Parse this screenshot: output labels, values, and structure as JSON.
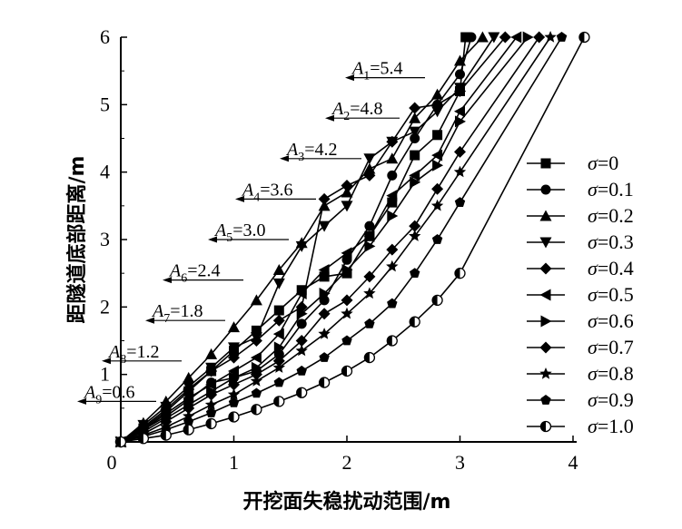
{
  "chart_data": {
    "type": "line",
    "title": "",
    "xlabel": "开挖面失稳扰动范围/m",
    "ylabel": "距隧道底部距离/m",
    "xlim": [
      0,
      4
    ],
    "ylim": [
      0,
      6
    ],
    "xticks": [
      "0",
      "1",
      "2",
      "3",
      "4"
    ],
    "yticks": [
      "1",
      "2",
      "3",
      "4",
      "5",
      "6"
    ],
    "grid": false,
    "legend_position": "right",
    "series": [
      {
        "name": "σ=0",
        "marker": "square",
        "points": [
          [
            0,
            0
          ],
          [
            0.2,
            0.2
          ],
          [
            0.4,
            0.45
          ],
          [
            0.6,
            0.75
          ],
          [
            0.8,
            1.05
          ],
          [
            1.0,
            1.35
          ],
          [
            1.2,
            1.65
          ],
          [
            1.4,
            1.95
          ],
          [
            1.6,
            2.25
          ],
          [
            1.8,
            2.45
          ],
          [
            2.0,
            2.5
          ],
          [
            2.2,
            3.05
          ],
          [
            2.4,
            3.55
          ],
          [
            2.6,
            4.25
          ],
          [
            2.8,
            4.55
          ],
          [
            3.0,
            5.2
          ],
          [
            3.05,
            6.0
          ]
        ]
      },
      {
        "name": "σ=0.1",
        "marker": "circle",
        "points": [
          [
            0,
            0
          ],
          [
            0.2,
            0.18
          ],
          [
            0.4,
            0.38
          ],
          [
            0.6,
            0.62
          ],
          [
            0.8,
            0.88
          ],
          [
            1.0,
            0.95
          ],
          [
            1.2,
            1.05
          ],
          [
            1.4,
            1.3
          ],
          [
            1.6,
            1.75
          ],
          [
            1.8,
            2.1
          ],
          [
            2.0,
            2.7
          ],
          [
            2.2,
            3.2
          ],
          [
            2.4,
            3.95
          ],
          [
            2.6,
            4.5
          ],
          [
            2.8,
            5.0
          ],
          [
            3.0,
            5.45
          ],
          [
            3.1,
            6.0
          ]
        ]
      },
      {
        "name": "σ=0.2",
        "marker": "triangle-up",
        "points": [
          [
            0,
            0
          ],
          [
            0.2,
            0.28
          ],
          [
            0.4,
            0.6
          ],
          [
            0.6,
            0.95
          ],
          [
            0.8,
            1.3
          ],
          [
            1.0,
            1.7
          ],
          [
            1.2,
            2.1
          ],
          [
            1.4,
            2.55
          ],
          [
            1.6,
            2.95
          ],
          [
            1.8,
            3.5
          ],
          [
            2.0,
            3.7
          ],
          [
            2.2,
            4.05
          ],
          [
            2.4,
            4.2
          ],
          [
            2.6,
            4.8
          ],
          [
            2.8,
            5.15
          ],
          [
            3.0,
            5.65
          ],
          [
            3.2,
            6.0
          ]
        ]
      },
      {
        "name": "σ=0.3",
        "marker": "triangle-down",
        "points": [
          [
            0,
            0
          ],
          [
            0.2,
            0.25
          ],
          [
            0.4,
            0.52
          ],
          [
            0.6,
            0.82
          ],
          [
            0.8,
            1.1
          ],
          [
            1.0,
            1.4
          ],
          [
            1.2,
            1.55
          ],
          [
            1.4,
            2.35
          ],
          [
            1.6,
            2.9
          ],
          [
            1.8,
            3.2
          ],
          [
            2.0,
            3.5
          ],
          [
            2.2,
            4.2
          ],
          [
            2.4,
            4.45
          ],
          [
            2.6,
            4.6
          ],
          [
            2.8,
            4.9
          ],
          [
            3.0,
            5.25
          ],
          [
            3.3,
            6.0
          ]
        ]
      },
      {
        "name": "σ=0.4",
        "marker": "diamond",
        "points": [
          [
            0,
            0
          ],
          [
            0.2,
            0.22
          ],
          [
            0.4,
            0.48
          ],
          [
            0.6,
            0.78
          ],
          [
            0.8,
            1.05
          ],
          [
            1.0,
            1.25
          ],
          [
            1.2,
            1.5
          ],
          [
            1.4,
            1.8
          ],
          [
            1.6,
            2.0
          ],
          [
            1.8,
            3.6
          ],
          [
            2.0,
            3.8
          ],
          [
            2.2,
            3.95
          ],
          [
            2.4,
            4.45
          ],
          [
            2.6,
            4.95
          ],
          [
            2.8,
            5.0
          ],
          [
            3.0,
            5.2
          ],
          [
            3.4,
            6.0
          ]
        ]
      },
      {
        "name": "σ=0.5",
        "marker": "triangle-left",
        "points": [
          [
            0,
            0
          ],
          [
            0.2,
            0.18
          ],
          [
            0.4,
            0.42
          ],
          [
            0.6,
            0.65
          ],
          [
            0.8,
            0.85
          ],
          [
            1.0,
            1.05
          ],
          [
            1.2,
            1.25
          ],
          [
            1.4,
            1.6
          ],
          [
            1.6,
            2.2
          ],
          [
            1.8,
            2.55
          ],
          [
            2.0,
            2.8
          ],
          [
            2.2,
            3.05
          ],
          [
            2.4,
            3.65
          ],
          [
            2.6,
            3.95
          ],
          [
            2.8,
            4.25
          ],
          [
            3.0,
            4.9
          ],
          [
            3.5,
            6.0
          ]
        ]
      },
      {
        "name": "σ=0.6",
        "marker": "triangle-right",
        "points": [
          [
            0,
            0
          ],
          [
            0.2,
            0.15
          ],
          [
            0.4,
            0.35
          ],
          [
            0.6,
            0.55
          ],
          [
            0.8,
            0.75
          ],
          [
            1.0,
            0.95
          ],
          [
            1.2,
            1.1
          ],
          [
            1.4,
            1.4
          ],
          [
            1.6,
            1.9
          ],
          [
            1.8,
            2.2
          ],
          [
            2.0,
            2.55
          ],
          [
            2.2,
            2.9
          ],
          [
            2.4,
            3.35
          ],
          [
            2.6,
            3.85
          ],
          [
            2.8,
            4.1
          ],
          [
            3.0,
            4.75
          ],
          [
            3.6,
            6.0
          ]
        ]
      },
      {
        "name": "σ=0.7",
        "marker": "diamond",
        "points": [
          [
            0,
            0
          ],
          [
            0.2,
            0.12
          ],
          [
            0.4,
            0.3
          ],
          [
            0.6,
            0.5
          ],
          [
            0.8,
            0.7
          ],
          [
            1.0,
            0.85
          ],
          [
            1.2,
            1.0
          ],
          [
            1.4,
            1.2
          ],
          [
            1.6,
            1.5
          ],
          [
            1.8,
            1.9
          ],
          [
            2.0,
            2.1
          ],
          [
            2.2,
            2.45
          ],
          [
            2.4,
            2.85
          ],
          [
            2.6,
            3.2
          ],
          [
            2.8,
            3.75
          ],
          [
            3.0,
            4.3
          ],
          [
            3.7,
            6.0
          ]
        ]
      },
      {
        "name": "σ=0.8",
        "marker": "star",
        "points": [
          [
            0,
            0
          ],
          [
            0.2,
            0.1
          ],
          [
            0.4,
            0.22
          ],
          [
            0.6,
            0.38
          ],
          [
            0.8,
            0.55
          ],
          [
            1.0,
            0.7
          ],
          [
            1.2,
            0.9
          ],
          [
            1.4,
            1.1
          ],
          [
            1.6,
            1.35
          ],
          [
            1.8,
            1.6
          ],
          [
            2.0,
            1.9
          ],
          [
            2.2,
            2.2
          ],
          [
            2.4,
            2.6
          ],
          [
            2.6,
            3.05
          ],
          [
            2.8,
            3.5
          ],
          [
            3.0,
            4.0
          ],
          [
            3.8,
            6.0
          ]
        ]
      },
      {
        "name": "σ=0.9",
        "marker": "pentagon",
        "points": [
          [
            0,
            0
          ],
          [
            0.2,
            0.08
          ],
          [
            0.4,
            0.18
          ],
          [
            0.6,
            0.3
          ],
          [
            0.8,
            0.43
          ],
          [
            1.0,
            0.58
          ],
          [
            1.2,
            0.72
          ],
          [
            1.4,
            0.88
          ],
          [
            1.6,
            1.05
          ],
          [
            1.8,
            1.25
          ],
          [
            2.0,
            1.5
          ],
          [
            2.2,
            1.75
          ],
          [
            2.4,
            2.05
          ],
          [
            2.6,
            2.5
          ],
          [
            2.8,
            3.0
          ],
          [
            3.0,
            3.55
          ],
          [
            3.9,
            6.0
          ]
        ]
      },
      {
        "name": "σ=1.0",
        "marker": "half-circle",
        "points": [
          [
            0,
            0
          ],
          [
            0.2,
            0.05
          ],
          [
            0.4,
            0.1
          ],
          [
            0.6,
            0.18
          ],
          [
            0.8,
            0.27
          ],
          [
            1.0,
            0.37
          ],
          [
            1.2,
            0.48
          ],
          [
            1.4,
            0.6
          ],
          [
            1.6,
            0.73
          ],
          [
            1.8,
            0.88
          ],
          [
            2.0,
            1.05
          ],
          [
            2.2,
            1.25
          ],
          [
            2.4,
            1.5
          ],
          [
            2.6,
            1.78
          ],
          [
            2.8,
            2.1
          ],
          [
            3.0,
            2.5
          ],
          [
            4.1,
            6.0
          ]
        ]
      }
    ],
    "annotations": [
      {
        "sym": "A",
        "sub": "1",
        "text": "=5.4",
        "y": 5.4
      },
      {
        "sym": "A",
        "sub": "2",
        "text": "=4.8",
        "y": 4.8
      },
      {
        "sym": "A",
        "sub": "3",
        "text": "=4.2",
        "y": 4.2
      },
      {
        "sym": "A",
        "sub": "4",
        "text": "=3.6",
        "y": 3.6
      },
      {
        "sym": "A",
        "sub": "5",
        "text": "=3.0",
        "y": 3.0
      },
      {
        "sym": "A",
        "sub": "6",
        "text": "=2.4",
        "y": 2.4
      },
      {
        "sym": "A",
        "sub": "7",
        "text": "=1.8",
        "y": 1.8
      },
      {
        "sym": "A",
        "sub": "8",
        "text": "=1.2",
        "y": 1.2
      },
      {
        "sym": "A",
        "sub": "9",
        "text": "=0.6",
        "y": 0.6
      }
    ]
  }
}
